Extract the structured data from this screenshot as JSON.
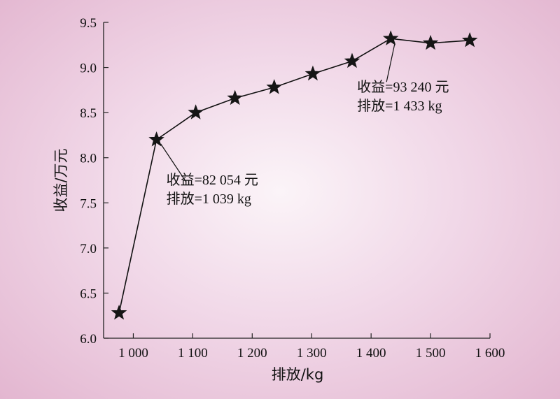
{
  "chart_data": {
    "type": "line",
    "title": "",
    "xlabel": "排放/kg",
    "ylabel": "收益/万元",
    "xlim": [
      950,
      1600
    ],
    "ylim": [
      6.0,
      9.5
    ],
    "x_ticks": [
      1000,
      1100,
      1200,
      1300,
      1400,
      1500,
      1600
    ],
    "x_tick_labels": [
      "1 000",
      "1 100",
      "1 200",
      "1 300",
      "1 400",
      "1 500",
      "1 600"
    ],
    "y_ticks": [
      6.0,
      6.5,
      7.0,
      7.5,
      8.0,
      8.5,
      9.0,
      9.5
    ],
    "y_tick_labels": [
      "6.0",
      "6.5",
      "7.0",
      "7.5",
      "8.0",
      "8.5",
      "9.0",
      "9.5"
    ],
    "grid": false,
    "marker": "star",
    "series": [
      {
        "x": [
          976,
          1039,
          1105,
          1171,
          1237,
          1302,
          1368,
          1433,
          1500,
          1566
        ],
        "y": [
          6.28,
          8.2,
          8.5,
          8.66,
          8.78,
          8.93,
          9.07,
          9.32,
          9.27,
          9.3
        ]
      }
    ],
    "annotations": [
      {
        "point_index": 1,
        "lines": [
          "收益=82 054 元",
          "排放=1 039 kg"
        ]
      },
      {
        "point_index": 7,
        "lines": [
          "收益=93 240 元",
          "排放=1 433 kg"
        ]
      }
    ]
  }
}
